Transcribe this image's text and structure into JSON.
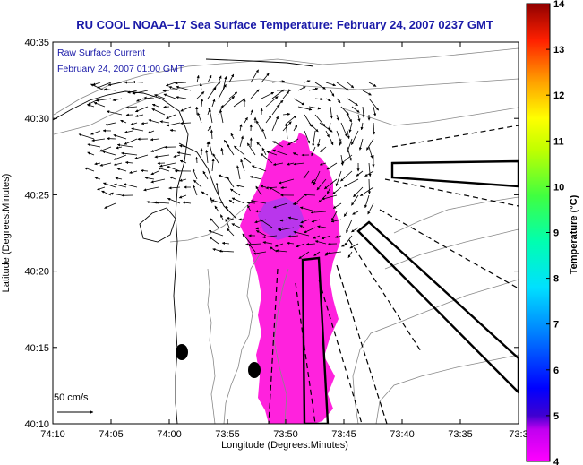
{
  "title": "RU COOL  NOAA–17  Sea Surface Temperature:  February 24, 2007 0237 GMT",
  "overlay": {
    "line1": "Raw Surface Current",
    "line2": "February 24, 2007 01:00 GMT"
  },
  "x_axis": {
    "label": "Longitude (Degrees:Minutes)",
    "ticks": [
      "74:10",
      "74:05",
      "74:00",
      "73:55",
      "73:50",
      "73:45",
      "73:40",
      "73:35",
      "73:3"
    ]
  },
  "y_axis": {
    "label": "Latitude (Degrees:Minutes)",
    "ticks": [
      "40:35",
      "40:30",
      "40:25",
      "40:20",
      "40:15",
      "40:10"
    ]
  },
  "colorbar": {
    "label": "Temperature (°C)",
    "ticks": [
      "4",
      "5",
      "6",
      "7",
      "8",
      "9",
      "10",
      "11",
      "12",
      "13",
      "14"
    ],
    "range": [
      4,
      14
    ],
    "colormap": "jet-with-magenta-low"
  },
  "scale_arrow": {
    "label": "50 cm/s"
  },
  "colors": {
    "title": "#1a1aa8",
    "sst_patch": "#ff22dd",
    "coast": "#000000",
    "bathymetry": "#888888"
  }
}
